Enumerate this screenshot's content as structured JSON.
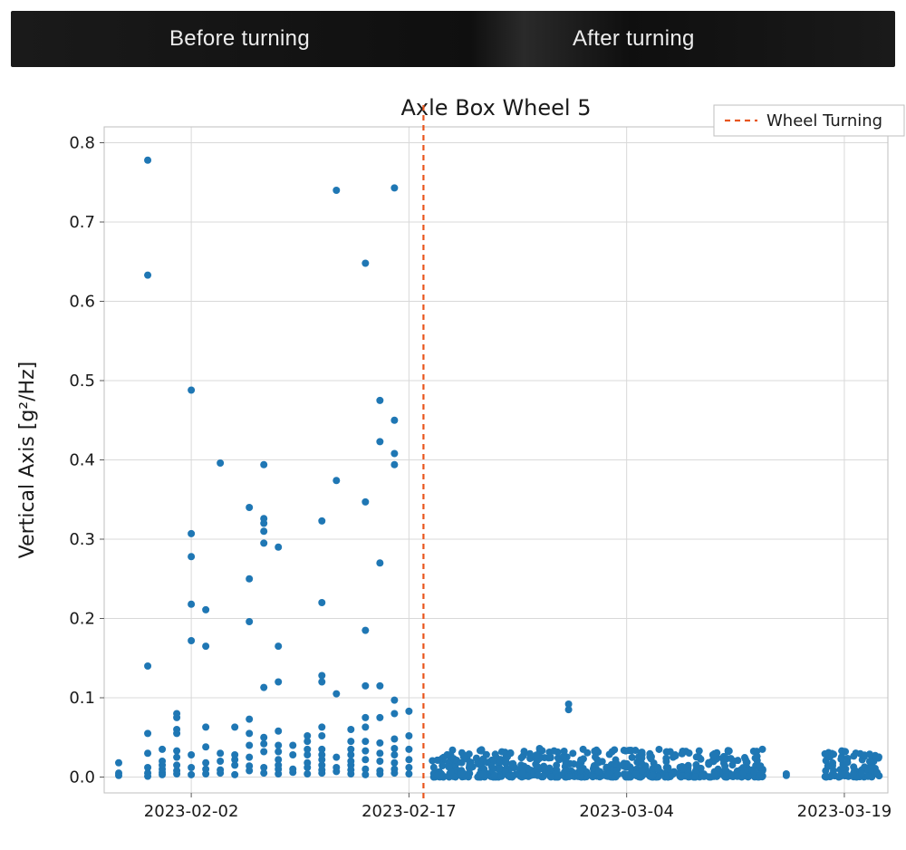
{
  "header": {
    "before_label": "Before turning",
    "after_label": "After turning",
    "text_color": "#ededed",
    "font_size_pt": 24,
    "bg_gradient_colors": [
      "#1a1a1a",
      "#0f0f0f",
      "#2a2a2a",
      "#0f0f0f",
      "#1a1a1a"
    ]
  },
  "chart": {
    "type": "scatter",
    "title": "Axle Box Wheel 5",
    "title_fontsize": 22,
    "ylabel": "Vertical Axis [g²/Hz]",
    "ylabel_fontsize": 20,
    "x_axis_type": "date",
    "x_date_min": "2023-01-27",
    "x_date_max": "2023-03-22",
    "x_tick_dates": [
      "2023-02-02",
      "2023-02-17",
      "2023-03-04",
      "2023-03-19"
    ],
    "x_tick_labels": [
      "2023-02-02",
      "2023-02-17",
      "2023-03-04",
      "2023-03-19"
    ],
    "x_tick_fontsize": 18,
    "ylim": [
      -0.02,
      0.82
    ],
    "y_ticks": [
      0.0,
      0.1,
      0.2,
      0.3,
      0.4,
      0.5,
      0.6,
      0.7,
      0.8
    ],
    "y_tick_labels": [
      "0.0",
      "0.1",
      "0.2",
      "0.3",
      "0.4",
      "0.5",
      "0.6",
      "0.7",
      "0.8"
    ],
    "y_tick_fontsize": 18,
    "grid_color": "#d9d9d9",
    "grid_width": 1,
    "frame_color": "#bfbfbf",
    "frame_width": 1,
    "background_color": "#ffffff",
    "marker_color": "#1f77b4",
    "marker_radius": 4,
    "marker_opacity": 1.0,
    "vertical_line": {
      "label": "Wheel Turning",
      "date": "2023-02-18",
      "color": "#e8551d",
      "dash": "6,5",
      "width": 2.2
    },
    "legend": {
      "position": "top-right-outside-overlap",
      "border_color": "#bfbfbf",
      "bg_color": "#ffffff",
      "fontsize": 18
    },
    "points_before": [
      [
        "2023-01-28",
        0.002
      ],
      [
        "2023-01-28",
        0.005
      ],
      [
        "2023-01-28",
        0.018
      ],
      [
        "2023-01-30",
        0.001
      ],
      [
        "2023-01-30",
        0.005
      ],
      [
        "2023-01-30",
        0.012
      ],
      [
        "2023-01-30",
        0.03
      ],
      [
        "2023-01-30",
        0.055
      ],
      [
        "2023-01-30",
        0.14
      ],
      [
        "2023-01-30",
        0.778
      ],
      [
        "2023-01-30",
        0.633
      ],
      [
        "2023-01-31",
        0.003
      ],
      [
        "2023-01-31",
        0.006
      ],
      [
        "2023-01-31",
        0.01
      ],
      [
        "2023-01-31",
        0.015
      ],
      [
        "2023-01-31",
        0.02
      ],
      [
        "2023-01-31",
        0.035
      ],
      [
        "2023-02-01",
        0.004
      ],
      [
        "2023-02-01",
        0.008
      ],
      [
        "2023-02-01",
        0.015
      ],
      [
        "2023-02-01",
        0.025
      ],
      [
        "2023-02-01",
        0.033
      ],
      [
        "2023-02-01",
        0.055
      ],
      [
        "2023-02-01",
        0.06
      ],
      [
        "2023-02-01",
        0.075
      ],
      [
        "2023-02-01",
        0.08
      ],
      [
        "2023-02-02",
        0.003
      ],
      [
        "2023-02-02",
        0.012
      ],
      [
        "2023-02-02",
        0.028
      ],
      [
        "2023-02-02",
        0.172
      ],
      [
        "2023-02-02",
        0.218
      ],
      [
        "2023-02-02",
        0.278
      ],
      [
        "2023-02-02",
        0.307
      ],
      [
        "2023-02-02",
        0.488
      ],
      [
        "2023-02-03",
        0.004
      ],
      [
        "2023-02-03",
        0.01
      ],
      [
        "2023-02-03",
        0.018
      ],
      [
        "2023-02-03",
        0.038
      ],
      [
        "2023-02-03",
        0.063
      ],
      [
        "2023-02-03",
        0.165
      ],
      [
        "2023-02-03",
        0.211
      ],
      [
        "2023-02-04",
        0.005
      ],
      [
        "2023-02-04",
        0.009
      ],
      [
        "2023-02-04",
        0.02
      ],
      [
        "2023-02-04",
        0.03
      ],
      [
        "2023-02-04",
        0.396
      ],
      [
        "2023-02-05",
        0.003
      ],
      [
        "2023-02-05",
        0.015
      ],
      [
        "2023-02-05",
        0.022
      ],
      [
        "2023-02-05",
        0.028
      ],
      [
        "2023-02-05",
        0.063
      ],
      [
        "2023-02-06",
        0.008
      ],
      [
        "2023-02-06",
        0.014
      ],
      [
        "2023-02-06",
        0.025
      ],
      [
        "2023-02-06",
        0.04
      ],
      [
        "2023-02-06",
        0.055
      ],
      [
        "2023-02-06",
        0.073
      ],
      [
        "2023-02-06",
        0.196
      ],
      [
        "2023-02-06",
        0.25
      ],
      [
        "2023-02-06",
        0.34
      ],
      [
        "2023-02-07",
        0.005
      ],
      [
        "2023-02-07",
        0.012
      ],
      [
        "2023-02-07",
        0.032
      ],
      [
        "2023-02-07",
        0.042
      ],
      [
        "2023-02-07",
        0.05
      ],
      [
        "2023-02-07",
        0.113
      ],
      [
        "2023-02-07",
        0.295
      ],
      [
        "2023-02-07",
        0.31
      ],
      [
        "2023-02-07",
        0.32
      ],
      [
        "2023-02-07",
        0.326
      ],
      [
        "2023-02-07",
        0.394
      ],
      [
        "2023-02-08",
        0.004
      ],
      [
        "2023-02-08",
        0.01
      ],
      [
        "2023-02-08",
        0.015
      ],
      [
        "2023-02-08",
        0.022
      ],
      [
        "2023-02-08",
        0.032
      ],
      [
        "2023-02-08",
        0.04
      ],
      [
        "2023-02-08",
        0.058
      ],
      [
        "2023-02-08",
        0.12
      ],
      [
        "2023-02-08",
        0.165
      ],
      [
        "2023-02-08",
        0.29
      ],
      [
        "2023-02-09",
        0.006
      ],
      [
        "2023-02-09",
        0.01
      ],
      [
        "2023-02-09",
        0.028
      ],
      [
        "2023-02-09",
        0.04
      ],
      [
        "2023-02-10",
        0.004
      ],
      [
        "2023-02-10",
        0.012
      ],
      [
        "2023-02-10",
        0.018
      ],
      [
        "2023-02-10",
        0.028
      ],
      [
        "2023-02-10",
        0.035
      ],
      [
        "2023-02-10",
        0.045
      ],
      [
        "2023-02-10",
        0.052
      ],
      [
        "2023-02-11",
        0.005
      ],
      [
        "2023-02-11",
        0.009
      ],
      [
        "2023-02-11",
        0.015
      ],
      [
        "2023-02-11",
        0.022
      ],
      [
        "2023-02-11",
        0.028
      ],
      [
        "2023-02-11",
        0.035
      ],
      [
        "2023-02-11",
        0.052
      ],
      [
        "2023-02-11",
        0.063
      ],
      [
        "2023-02-11",
        0.12
      ],
      [
        "2023-02-11",
        0.128
      ],
      [
        "2023-02-11",
        0.22
      ],
      [
        "2023-02-11",
        0.323
      ],
      [
        "2023-02-12",
        0.007
      ],
      [
        "2023-02-12",
        0.012
      ],
      [
        "2023-02-12",
        0.025
      ],
      [
        "2023-02-12",
        0.105
      ],
      [
        "2023-02-12",
        0.374
      ],
      [
        "2023-02-12",
        0.74
      ],
      [
        "2023-02-13",
        0.004
      ],
      [
        "2023-02-13",
        0.009
      ],
      [
        "2023-02-13",
        0.015
      ],
      [
        "2023-02-13",
        0.02
      ],
      [
        "2023-02-13",
        0.028
      ],
      [
        "2023-02-13",
        0.035
      ],
      [
        "2023-02-13",
        0.045
      ],
      [
        "2023-02-13",
        0.06
      ],
      [
        "2023-02-14",
        0.003
      ],
      [
        "2023-02-14",
        0.01
      ],
      [
        "2023-02-14",
        0.022
      ],
      [
        "2023-02-14",
        0.033
      ],
      [
        "2023-02-14",
        0.045
      ],
      [
        "2023-02-14",
        0.063
      ],
      [
        "2023-02-14",
        0.075
      ],
      [
        "2023-02-14",
        0.115
      ],
      [
        "2023-02-14",
        0.185
      ],
      [
        "2023-02-14",
        0.347
      ],
      [
        "2023-02-14",
        0.648
      ],
      [
        "2023-02-15",
        0.004
      ],
      [
        "2023-02-15",
        0.008
      ],
      [
        "2023-02-15",
        0.02
      ],
      [
        "2023-02-15",
        0.03
      ],
      [
        "2023-02-15",
        0.043
      ],
      [
        "2023-02-15",
        0.075
      ],
      [
        "2023-02-15",
        0.115
      ],
      [
        "2023-02-15",
        0.27
      ],
      [
        "2023-02-15",
        0.423
      ],
      [
        "2023-02-15",
        0.475
      ],
      [
        "2023-02-16",
        0.005
      ],
      [
        "2023-02-16",
        0.01
      ],
      [
        "2023-02-16",
        0.018
      ],
      [
        "2023-02-16",
        0.028
      ],
      [
        "2023-02-16",
        0.036
      ],
      [
        "2023-02-16",
        0.048
      ],
      [
        "2023-02-16",
        0.08
      ],
      [
        "2023-02-16",
        0.097
      ],
      [
        "2023-02-16",
        0.394
      ],
      [
        "2023-02-16",
        0.408
      ],
      [
        "2023-02-16",
        0.45
      ],
      [
        "2023-02-16",
        0.743
      ],
      [
        "2023-02-17",
        0.004
      ],
      [
        "2023-02-17",
        0.012
      ],
      [
        "2023-02-17",
        0.022
      ],
      [
        "2023-02-17",
        0.035
      ],
      [
        "2023-02-17",
        0.052
      ],
      [
        "2023-02-17",
        0.083
      ]
    ],
    "band_after": {
      "dates": [
        "2023-02-19",
        "2023-02-20",
        "2023-02-21",
        "2023-02-22",
        "2023-02-23",
        "2023-02-24",
        "2023-02-25",
        "2023-02-26",
        "2023-02-27",
        "2023-02-28",
        "2023-03-01",
        "2023-03-02",
        "2023-03-03",
        "2023-03-04",
        "2023-03-05",
        "2023-03-06",
        "2023-03-07",
        "2023-03-08",
        "2023-03-09",
        "2023-03-10",
        "2023-03-11",
        "2023-03-12",
        "2023-03-13"
      ],
      "y_min": 0.0,
      "y_max": 0.035,
      "samples_per_day": 26
    },
    "band_after_outliers": [
      [
        "2023-02-20",
        0.034
      ],
      [
        "2023-02-22",
        0.033
      ],
      [
        "2023-02-24",
        0.03
      ],
      [
        "2023-02-26",
        0.036
      ],
      [
        "2023-02-27",
        0.033
      ],
      [
        "2023-02-28",
        0.085
      ],
      [
        "2023-02-28",
        0.092
      ],
      [
        "2023-03-01",
        0.035
      ],
      [
        "2023-03-03",
        0.032
      ],
      [
        "2023-03-05",
        0.031
      ],
      [
        "2023-03-07",
        0.032
      ],
      [
        "2023-03-09",
        0.033
      ],
      [
        "2023-03-11",
        0.032
      ],
      [
        "2023-03-15",
        0.002
      ],
      [
        "2023-03-15",
        0.004
      ]
    ],
    "band_after_cluster2": {
      "dates": [
        "2023-03-18",
        "2023-03-19",
        "2023-03-20",
        "2023-03-21"
      ],
      "y_min": 0.0,
      "y_max": 0.035,
      "samples_per_day": 22
    }
  }
}
